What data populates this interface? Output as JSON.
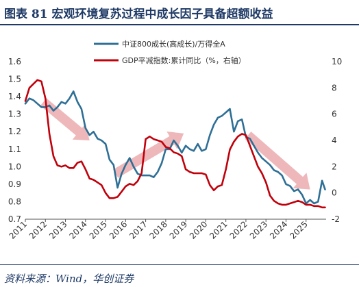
{
  "title": "图表 81   宏观环境复苏过程中成长因子具备超额收益",
  "source": "资料来源：Wind，华创证券",
  "chart_data": {
    "type": "line",
    "legend": [
      {
        "name": "中证800成长(高成长)/万得全A",
        "color": "#2e6f95",
        "axis": "left"
      },
      {
        "name": "GDP平减指数:累计同比（%，右轴）",
        "color": "#c0000b",
        "axis": "right"
      }
    ],
    "x_ticks": [
      "2011",
      "2012",
      "2013",
      "2014",
      "2015",
      "2016",
      "2017",
      "2018",
      "2019",
      "2020",
      "2021",
      "2022",
      "2023",
      "2024",
      "2025"
    ],
    "xlim": [
      2011.0,
      2026.0
    ],
    "ylim_left": [
      0.7,
      1.6
    ],
    "yticks_left": [
      "0.7",
      "0.8",
      "0.9",
      "1.0",
      "1.1",
      "1.2",
      "1.3",
      "1.4",
      "1.5",
      "1.6"
    ],
    "ylim_right": [
      -2,
      10
    ],
    "yticks_right": [
      "-2",
      "0",
      "2",
      "4",
      "6",
      "8",
      "10"
    ],
    "series": [
      {
        "name": "中证800成长(高成长)/万得全A",
        "axis": "left",
        "color": "#2e6f95",
        "x": [
          2011.0,
          2011.2,
          2011.4,
          2011.6,
          2011.8,
          2012.0,
          2012.2,
          2012.4,
          2012.6,
          2012.8,
          2013.0,
          2013.2,
          2013.4,
          2013.6,
          2013.8,
          2014.0,
          2014.2,
          2014.4,
          2014.6,
          2014.8,
          2015.0,
          2015.2,
          2015.4,
          2015.6,
          2015.8,
          2016.0,
          2016.2,
          2016.4,
          2016.6,
          2016.8,
          2017.0,
          2017.2,
          2017.4,
          2017.6,
          2017.8,
          2018.0,
          2018.2,
          2018.4,
          2018.6,
          2018.8,
          2019.0,
          2019.2,
          2019.4,
          2019.6,
          2019.8,
          2020.0,
          2020.2,
          2020.4,
          2020.6,
          2020.8,
          2021.0,
          2021.2,
          2021.4,
          2021.6,
          2021.8,
          2022.0,
          2022.2,
          2022.4,
          2022.6,
          2022.8,
          2023.0,
          2023.2,
          2023.4,
          2023.6,
          2023.8,
          2024.0,
          2024.2,
          2024.4,
          2024.6,
          2024.8,
          2025.0,
          2025.2,
          2025.4,
          2025.6,
          2025.8,
          2025.95
        ],
        "y": [
          1.36,
          1.39,
          1.38,
          1.36,
          1.34,
          1.34,
          1.35,
          1.32,
          1.34,
          1.37,
          1.36,
          1.39,
          1.43,
          1.37,
          1.33,
          1.22,
          1.18,
          1.2,
          1.16,
          1.15,
          1.13,
          1.04,
          1.01,
          0.88,
          0.96,
          1.01,
          1.05,
          1.0,
          0.96,
          0.95,
          0.95,
          0.95,
          0.94,
          0.97,
          1.02,
          1.1,
          1.1,
          1.15,
          1.12,
          1.08,
          1.12,
          1.1,
          1.09,
          1.13,
          1.09,
          1.1,
          1.18,
          1.24,
          1.28,
          1.29,
          1.31,
          1.33,
          1.2,
          1.26,
          1.27,
          1.17,
          1.16,
          1.12,
          1.08,
          1.05,
          1.03,
          1.01,
          0.98,
          0.97,
          0.95,
          0.9,
          0.89,
          0.86,
          0.87,
          0.84,
          0.79,
          0.81,
          0.79,
          0.8,
          0.92,
          0.87
        ]
      },
      {
        "name": "GDP平减指数:累计同比（%，右轴）",
        "axis": "right",
        "color": "#c0000b",
        "x": [
          2011.0,
          2011.2,
          2011.4,
          2011.6,
          2011.8,
          2012.0,
          2012.2,
          2012.4,
          2012.6,
          2012.8,
          2013.0,
          2013.2,
          2013.4,
          2013.6,
          2013.8,
          2014.0,
          2014.2,
          2014.4,
          2014.6,
          2014.8,
          2015.0,
          2015.2,
          2015.4,
          2015.6,
          2015.8,
          2016.0,
          2016.2,
          2016.4,
          2016.6,
          2016.8,
          2017.0,
          2017.2,
          2017.4,
          2017.6,
          2017.8,
          2018.0,
          2018.2,
          2018.4,
          2018.6,
          2018.8,
          2019.0,
          2019.2,
          2019.4,
          2019.6,
          2019.8,
          2020.0,
          2020.2,
          2020.4,
          2020.6,
          2020.8,
          2021.0,
          2021.2,
          2021.4,
          2021.6,
          2021.8,
          2022.0,
          2022.2,
          2022.4,
          2022.6,
          2022.8,
          2023.0,
          2023.2,
          2023.4,
          2023.6,
          2023.8,
          2024.0,
          2024.2,
          2024.4,
          2024.6,
          2024.8,
          2025.0,
          2025.2,
          2025.4,
          2025.6,
          2025.8,
          2025.95
        ],
        "y": [
          7.0,
          8.0,
          8.3,
          8.6,
          8.5,
          7.2,
          4.5,
          2.8,
          2.1,
          2.0,
          2.1,
          1.9,
          1.9,
          2.3,
          2.4,
          1.8,
          1.1,
          1.0,
          0.8,
          0.6,
          0.0,
          -0.4,
          -0.4,
          -0.3,
          0.1,
          0.5,
          0.7,
          0.6,
          0.9,
          1.5,
          4.1,
          4.3,
          4.1,
          4.0,
          3.9,
          3.5,
          3.4,
          3.1,
          3.0,
          2.8,
          1.8,
          1.6,
          1.5,
          1.5,
          1.5,
          1.4,
          0.6,
          0.2,
          0.5,
          0.6,
          1.8,
          3.3,
          3.9,
          4.3,
          4.5,
          4.4,
          3.6,
          2.8,
          2.0,
          1.5,
          0.8,
          -0.2,
          -0.6,
          -0.8,
          -0.9,
          -0.9,
          -0.8,
          -0.7,
          -0.6,
          -0.7,
          -0.9,
          -0.9,
          -1.0,
          -1.0,
          -1.1,
          -1.1
        ]
      }
    ],
    "annotations": [
      {
        "type": "arrow",
        "direction": "down",
        "from": [
          2011.9,
          1.37
        ],
        "to": [
          2014.2,
          1.15
        ]
      },
      {
        "type": "arrow",
        "direction": "up",
        "from": [
          2015.5,
          0.96
        ],
        "to": [
          2018.9,
          1.19
        ]
      },
      {
        "type": "arrow",
        "direction": "down",
        "from": [
          2022.1,
          1.18
        ],
        "to": [
          2025.2,
          0.87
        ]
      }
    ]
  }
}
